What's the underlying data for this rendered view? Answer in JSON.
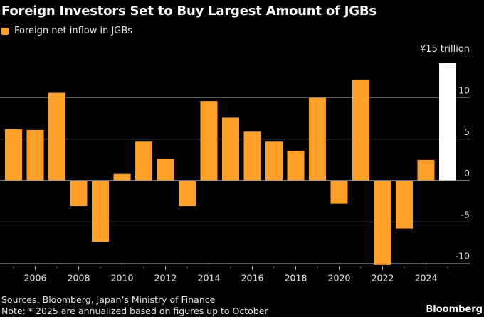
{
  "chart_data": {
    "type": "bar",
    "title": "Foreign Investors Set to Buy Largest Amount of JGBs",
    "legend": [
      {
        "name": "Foreign net inflow in JGBs",
        "color": "#ffa028"
      }
    ],
    "legend_position": "top-left",
    "unit_label": "¥15 trillion",
    "xlabel": "",
    "ylabel": "",
    "x": [
      2005,
      2006,
      2007,
      2008,
      2009,
      2010,
      2011,
      2012,
      2013,
      2014,
      2015,
      2016,
      2017,
      2018,
      2019,
      2020,
      2021,
      2022,
      2023,
      2024,
      2025
    ],
    "series": [
      {
        "name": "Foreign net inflow in JGBs",
        "values": [
          6.2,
          6.1,
          10.6,
          -3.1,
          -7.4,
          0.8,
          4.7,
          2.6,
          -3.1,
          9.6,
          7.6,
          5.9,
          4.7,
          3.6,
          10.0,
          -2.8,
          12.2,
          -10.2,
          -5.8,
          2.5,
          14.2
        ],
        "colors": [
          "#ffa028",
          "#ffa028",
          "#ffa028",
          "#ffa028",
          "#ffa028",
          "#ffa028",
          "#ffa028",
          "#ffa028",
          "#ffa028",
          "#ffa028",
          "#ffa028",
          "#ffa028",
          "#ffa028",
          "#ffa028",
          "#ffa028",
          "#ffa028",
          "#ffa028",
          "#ffa028",
          "#ffa028",
          "#ffa028",
          "#ffffff"
        ]
      }
    ],
    "highlight": {
      "year": 2025,
      "color": "#ffffff",
      "note": "annualized"
    },
    "ylim": [
      -10,
      15
    ],
    "yticks": [
      {
        "value": 10,
        "label": "10"
      },
      {
        "value": 5,
        "label": "5"
      },
      {
        "value": 0,
        "label": "0"
      },
      {
        "value": -5,
        "label": "-5"
      },
      {
        "value": -10,
        "label": "-10"
      }
    ],
    "xtick_labels": [
      {
        "year": 2006,
        "label": "2006"
      },
      {
        "year": 2008,
        "label": "2008"
      },
      {
        "year": 2010,
        "label": "2010"
      },
      {
        "year": 2012,
        "label": "2012"
      },
      {
        "year": 2014,
        "label": "2014"
      },
      {
        "year": 2016,
        "label": "2016"
      },
      {
        "year": 2018,
        "label": "2018"
      },
      {
        "year": 2020,
        "label": "2020"
      },
      {
        "year": 2022,
        "label": "2022"
      },
      {
        "year": 2024,
        "label": "2024"
      }
    ],
    "grid": true
  },
  "footer": {
    "sources": "Sources: Bloomberg, Japan’s Ministry of Finance",
    "note": "Note: * 2025 are annualized based on figures up to October",
    "brand": "Bloomberg"
  },
  "colors": {
    "background": "#000000",
    "bar": "#ffa028",
    "highlight_bar": "#ffffff",
    "gridline": "#5a5a5a",
    "zero_line": "#9a9a9a",
    "text": "#e6e6e6"
  }
}
